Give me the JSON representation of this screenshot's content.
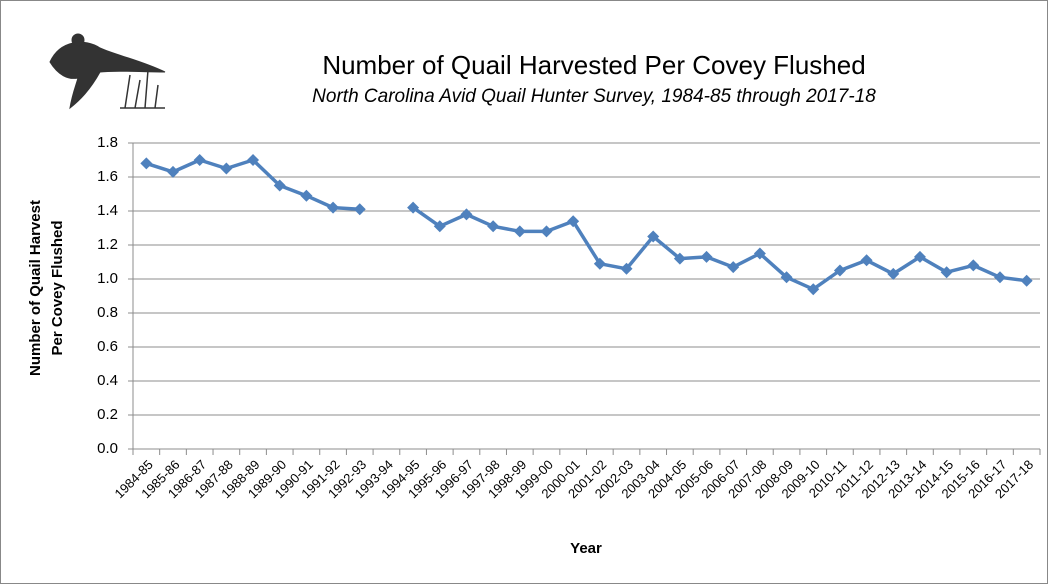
{
  "chart_data": {
    "type": "line",
    "title": "Number of Quail Harvested Per Covey Flushed",
    "subtitle": "North Carolina Avid Quail Hunter Survey, 1984-85 through 2017-18",
    "xlabel": "Year",
    "ylabel": [
      "Number of Quail Harvest",
      "Per Covey Flushed"
    ],
    "categories": [
      "1984-85",
      "1985-86",
      "1986-87",
      "1987-88",
      "1988-89",
      "1989-90",
      "1990-91",
      "1991-92",
      "1992-93",
      "1993-94",
      "1994-95",
      "1995-96",
      "1996-97",
      "1997-98",
      "1998-99",
      "1999-00",
      "2000-01",
      "2001-02",
      "2002-03",
      "2003-04",
      "2004-05",
      "2005-06",
      "2006-07",
      "2007-08",
      "2008-09",
      "2009-10",
      "2010-11",
      "2011-12",
      "2012-13",
      "2013-14",
      "2014-15",
      "2015-16",
      "2016-17",
      "2017-18"
    ],
    "series": [
      {
        "color": "#4f81bd",
        "values": [
          1.68,
          1.63,
          1.7,
          1.65,
          1.7,
          1.55,
          1.49,
          1.42,
          1.41,
          null,
          1.42,
          1.31,
          1.38,
          1.31,
          1.28,
          1.28,
          1.34,
          1.09,
          1.06,
          1.25,
          1.12,
          1.13,
          1.07,
          1.15,
          1.01,
          0.94,
          1.05,
          1.11,
          1.03,
          1.13,
          1.04,
          1.08,
          1.01,
          0.99
        ]
      }
    ],
    "ylim": [
      0,
      1.8
    ],
    "yticks": [
      {
        "value": 0,
        "label": "0.0"
      },
      0.2,
      0.4,
      0.6,
      0.8,
      {
        "value": 1,
        "label": "1.0"
      },
      1.2,
      1.4,
      1.6,
      1.8
    ],
    "grid": true
  }
}
